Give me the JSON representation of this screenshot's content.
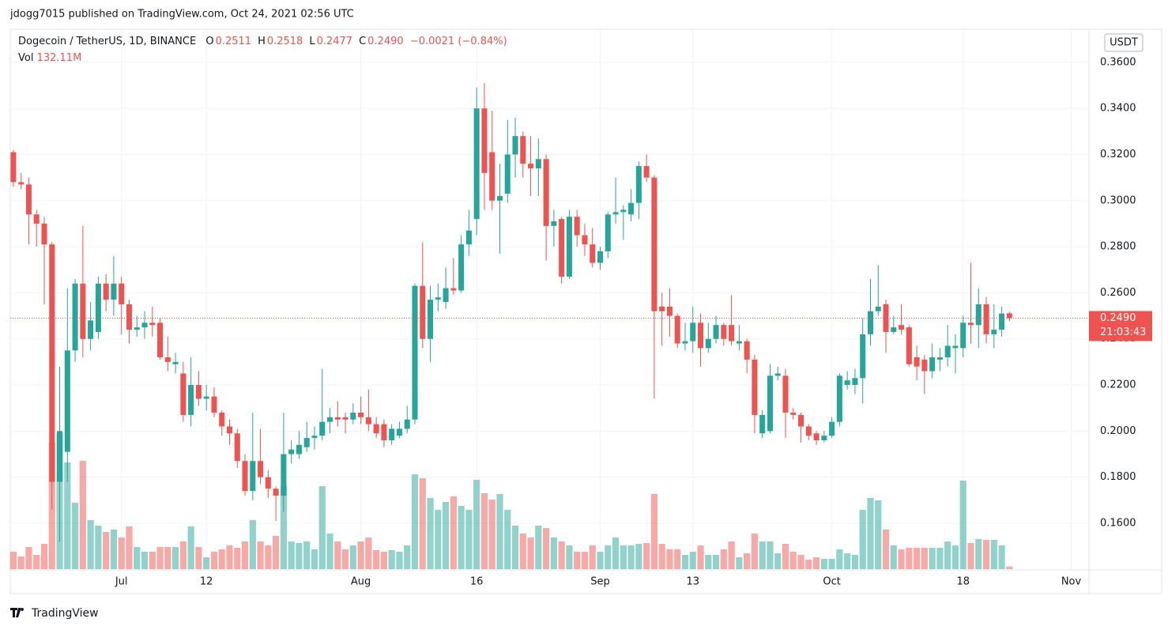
{
  "header": {
    "attribution": "jdogg7015 published on TradingView.com, Oct 24, 2021 02:56 UTC",
    "footer": "TradingView"
  },
  "chart_data": {
    "type": "candlestick",
    "title": "Dogecoin / TetherUS, 1D, BINANCE",
    "ohlc_labels": [
      {
        "key": "O",
        "value": "0.2511"
      },
      {
        "key": "H",
        "value": "0.2518"
      },
      {
        "key": "L",
        "value": "0.2477"
      },
      {
        "key": "C",
        "value": "0.2490"
      }
    ],
    "change": "−0.0021 (−0.84%)",
    "volume_title": "Vol",
    "volume_last": "132.11M",
    "currency": "USDT",
    "last_price": {
      "value": 0.249,
      "label": "0.2490"
    },
    "countdown": "21:03:43",
    "up_color": "#26a69a",
    "down_color": "#ef5350",
    "grid": true,
    "xlim": [
      -0.4,
      139.3
    ],
    "xticks": [
      {
        "value": 14,
        "label": "Jul"
      },
      {
        "value": 25,
        "label": "12"
      },
      {
        "value": 45,
        "label": "Aug"
      },
      {
        "value": 60,
        "label": "16"
      },
      {
        "value": 76,
        "label": "Sep"
      },
      {
        "value": 88,
        "label": "13"
      },
      {
        "value": 106,
        "label": "Oct"
      },
      {
        "value": 123,
        "label": "18"
      },
      {
        "value": 137,
        "label": "Nov"
      }
    ],
    "ylim": [
      0.1401,
      0.374
    ],
    "yticks": [
      {
        "value": 0.16,
        "label": "0.1600"
      },
      {
        "value": 0.18,
        "label": "0.1800"
      },
      {
        "value": 0.2,
        "label": "0.2000"
      },
      {
        "value": 0.22,
        "label": "0.2200"
      },
      {
        "value": 0.24,
        "label": "0.2400"
      },
      {
        "value": 0.26,
        "label": "0.2600"
      },
      {
        "value": 0.28,
        "label": "0.2800"
      },
      {
        "value": 0.3,
        "label": "0.3000"
      },
      {
        "value": 0.32,
        "label": "0.3200"
      },
      {
        "value": 0.34,
        "label": "0.3400"
      },
      {
        "value": 0.36,
        "label": "0.3600"
      }
    ],
    "open": [
      0.321,
      0.308,
      0.307,
      0.294,
      0.29,
      0.281,
      0.178,
      0.191,
      0.235,
      0.264,
      0.24,
      0.243,
      0.264,
      0.257,
      0.264,
      0.255,
      0.244,
      0.245,
      0.247,
      0.247,
      0.232,
      0.229,
      0.225,
      0.207,
      0.22,
      0.214,
      0.215,
      0.208,
      0.202,
      0.199,
      0.187,
      0.174,
      0.187,
      0.18,
      0.175,
      0.172,
      0.19,
      0.19,
      0.193,
      0.197,
      0.198,
      0.204,
      0.206,
      0.206,
      0.205,
      0.208,
      0.206,
      0.203,
      0.203,
      0.196,
      0.198,
      0.201,
      0.205,
      0.263,
      0.24,
      0.257,
      0.256,
      0.262,
      0.261,
      0.281,
      0.292,
      0.34,
      0.321,
      0.3,
      0.303,
      0.32,
      0.328,
      0.316,
      0.314,
      0.318,
      0.289,
      0.292,
      0.267,
      0.293,
      0.285,
      0.281,
      0.273,
      0.278,
      0.294,
      0.295,
      0.294,
      0.299,
      0.315,
      0.31,
      0.254,
      0.254,
      0.25,
      0.238,
      0.239,
      0.247,
      0.236,
      0.24,
      0.246,
      0.246,
      0.238,
      0.239,
      0.231,
      0.199,
      0.2,
      0.224,
      0.224,
      0.208,
      0.207,
      0.202,
      0.199,
      0.196,
      0.198,
      0.204,
      0.22,
      0.22,
      0.223,
      0.242,
      0.252,
      0.255,
      0.243,
      0.246,
      0.245,
      0.232,
      0.231,
      0.226,
      0.231,
      0.232,
      0.236,
      0.236,
      0.247,
      0.246,
      0.255,
      0.242,
      0.244,
      0.2511
    ],
    "high": [
      0.322,
      0.312,
      0.31,
      0.296,
      0.293,
      0.282,
      0.228,
      0.262,
      0.266,
      0.289,
      0.256,
      0.267,
      0.268,
      0.276,
      0.267,
      0.257,
      0.25,
      0.252,
      0.254,
      0.249,
      0.241,
      0.234,
      0.23,
      0.232,
      0.226,
      0.22,
      0.219,
      0.209,
      0.205,
      0.201,
      0.19,
      0.208,
      0.201,
      0.183,
      0.176,
      0.208,
      0.196,
      0.2,
      0.204,
      0.202,
      0.227,
      0.21,
      0.213,
      0.208,
      0.212,
      0.215,
      0.218,
      0.206,
      0.205,
      0.203,
      0.204,
      0.211,
      0.264,
      0.282,
      0.263,
      0.264,
      0.271,
      0.275,
      0.285,
      0.296,
      0.349,
      0.351,
      0.339,
      0.316,
      0.335,
      0.336,
      0.33,
      0.328,
      0.327,
      0.32,
      0.296,
      0.293,
      0.296,
      0.296,
      0.29,
      0.288,
      0.28,
      0.295,
      0.31,
      0.298,
      0.305,
      0.317,
      0.32,
      0.311,
      0.26,
      0.262,
      0.251,
      0.247,
      0.254,
      0.251,
      0.247,
      0.25,
      0.247,
      0.259,
      0.246,
      0.24,
      0.233,
      0.209,
      0.229,
      0.228,
      0.227,
      0.21,
      0.208,
      0.203,
      0.2,
      0.2,
      0.206,
      0.225,
      0.226,
      0.227,
      0.249,
      0.266,
      0.272,
      0.257,
      0.25,
      0.255,
      0.246,
      0.237,
      0.233,
      0.238,
      0.236,
      0.246,
      0.242,
      0.25,
      0.273,
      0.262,
      0.258,
      0.255,
      0.254,
      0.2518
    ],
    "low": [
      0.306,
      0.305,
      0.281,
      0.28,
      0.255,
      0.166,
      0.152,
      0.178,
      0.23,
      0.232,
      0.235,
      0.24,
      0.252,
      0.25,
      0.242,
      0.238,
      0.241,
      0.24,
      0.241,
      0.231,
      0.226,
      0.225,
      0.204,
      0.202,
      0.211,
      0.209,
      0.206,
      0.198,
      0.194,
      0.184,
      0.172,
      0.17,
      0.177,
      0.171,
      0.161,
      0.165,
      0.186,
      0.188,
      0.191,
      0.192,
      0.196,
      0.199,
      0.202,
      0.199,
      0.203,
      0.203,
      0.2,
      0.197,
      0.193,
      0.194,
      0.197,
      0.199,
      0.203,
      0.236,
      0.23,
      0.252,
      0.253,
      0.259,
      0.26,
      0.276,
      0.285,
      0.296,
      0.296,
      0.277,
      0.299,
      0.31,
      0.31,
      0.302,
      0.302,
      0.274,
      0.28,
      0.264,
      0.266,
      0.28,
      0.276,
      0.271,
      0.27,
      0.275,
      0.29,
      0.283,
      0.291,
      0.292,
      0.308,
      0.214,
      0.237,
      0.241,
      0.236,
      0.235,
      0.234,
      0.228,
      0.234,
      0.238,
      0.237,
      0.237,
      0.235,
      0.225,
      0.199,
      0.197,
      0.199,
      0.222,
      0.197,
      0.205,
      0.195,
      0.196,
      0.194,
      0.195,
      0.197,
      0.202,
      0.218,
      0.216,
      0.212,
      0.237,
      0.25,
      0.234,
      0.242,
      0.242,
      0.228,
      0.222,
      0.216,
      0.223,
      0.226,
      0.228,
      0.225,
      0.232,
      0.238,
      0.236,
      0.238,
      0.236,
      0.241,
      0.2477
    ],
    "close": [
      0.308,
      0.307,
      0.294,
      0.29,
      0.281,
      0.178,
      0.2,
      0.235,
      0.264,
      0.24,
      0.248,
      0.264,
      0.257,
      0.264,
      0.255,
      0.244,
      0.245,
      0.247,
      0.246,
      0.232,
      0.23,
      0.23,
      0.207,
      0.22,
      0.214,
      0.215,
      0.208,
      0.202,
      0.199,
      0.187,
      0.174,
      0.187,
      0.18,
      0.175,
      0.172,
      0.19,
      0.192,
      0.194,
      0.197,
      0.198,
      0.204,
      0.206,
      0.205,
      0.205,
      0.208,
      0.206,
      0.203,
      0.199,
      0.196,
      0.201,
      0.201,
      0.205,
      0.263,
      0.24,
      0.257,
      0.258,
      0.262,
      0.261,
      0.281,
      0.287,
      0.34,
      0.312,
      0.3,
      0.302,
      0.32,
      0.328,
      0.316,
      0.314,
      0.318,
      0.289,
      0.291,
      0.267,
      0.293,
      0.285,
      0.281,
      0.273,
      0.278,
      0.294,
      0.295,
      0.296,
      0.299,
      0.315,
      0.31,
      0.252,
      0.252,
      0.25,
      0.238,
      0.239,
      0.247,
      0.236,
      0.24,
      0.246,
      0.24,
      0.239,
      0.239,
      0.231,
      0.207,
      0.207,
      0.224,
      0.225,
      0.208,
      0.207,
      0.202,
      0.198,
      0.196,
      0.198,
      0.204,
      0.224,
      0.222,
      0.223,
      0.242,
      0.252,
      0.254,
      0.243,
      0.245,
      0.244,
      0.229,
      0.228,
      0.226,
      0.232,
      0.232,
      0.237,
      0.237,
      0.247,
      0.246,
      0.255,
      0.242,
      0.244,
      0.251,
      0.249
    ],
    "volume": [
      880000000,
      640000000,
      1120000000,
      720000000,
      1280000000,
      6400000000,
      6880000000,
      5400000000,
      3360000000,
      5480000000,
      2480000000,
      2200000000,
      1880000000,
      2000000000,
      1600000000,
      2160000000,
      1120000000,
      880000000,
      880000000,
      1120000000,
      1120000000,
      1120000000,
      1400000000,
      2160000000,
      1120000000,
      600000000,
      880000000,
      1000000000,
      1200000000,
      1080000000,
      1400000000,
      2480000000,
      1400000000,
      1200000000,
      1680000000,
      4200000000,
      1400000000,
      1320000000,
      1400000000,
      1000000000,
      4200000000,
      1800000000,
      1400000000,
      1000000000,
      1200000000,
      1400000000,
      1600000000,
      960000000,
      880000000,
      960000000,
      880000000,
      1200000000,
      4800000000,
      4600000000,
      3600000000,
      3000000000,
      3400000000,
      3680000000,
      3200000000,
      3000000000,
      4520000000,
      3840000000,
      3520000000,
      3800000000,
      3000000000,
      2200000000,
      1800000000,
      1600000000,
      2200000000,
      2080000000,
      1600000000,
      1400000000,
      1200000000,
      880000000,
      880000000,
      1200000000,
      880000000,
      1200000000,
      1600000000,
      1200000000,
      1200000000,
      1280000000,
      1320000000,
      3800000000,
      1280000000,
      1000000000,
      1000000000,
      720000000,
      880000000,
      1200000000,
      720000000,
      720000000,
      1000000000,
      1400000000,
      600000000,
      800000000,
      1800000000,
      1400000000,
      1400000000,
      800000000,
      1280000000,
      880000000,
      720000000,
      480000000,
      600000000,
      520000000,
      520000000,
      1000000000,
      800000000,
      720000000,
      3000000000,
      3600000000,
      3480000000,
      2000000000,
      1200000000,
      1000000000,
      1080000000,
      1080000000,
      1080000000,
      1080000000,
      1080000000,
      1400000000,
      1200000000,
      4480000000,
      1320000000,
      1520000000,
      1480000000,
      1480000000,
      1200000000,
      132110000
    ]
  }
}
